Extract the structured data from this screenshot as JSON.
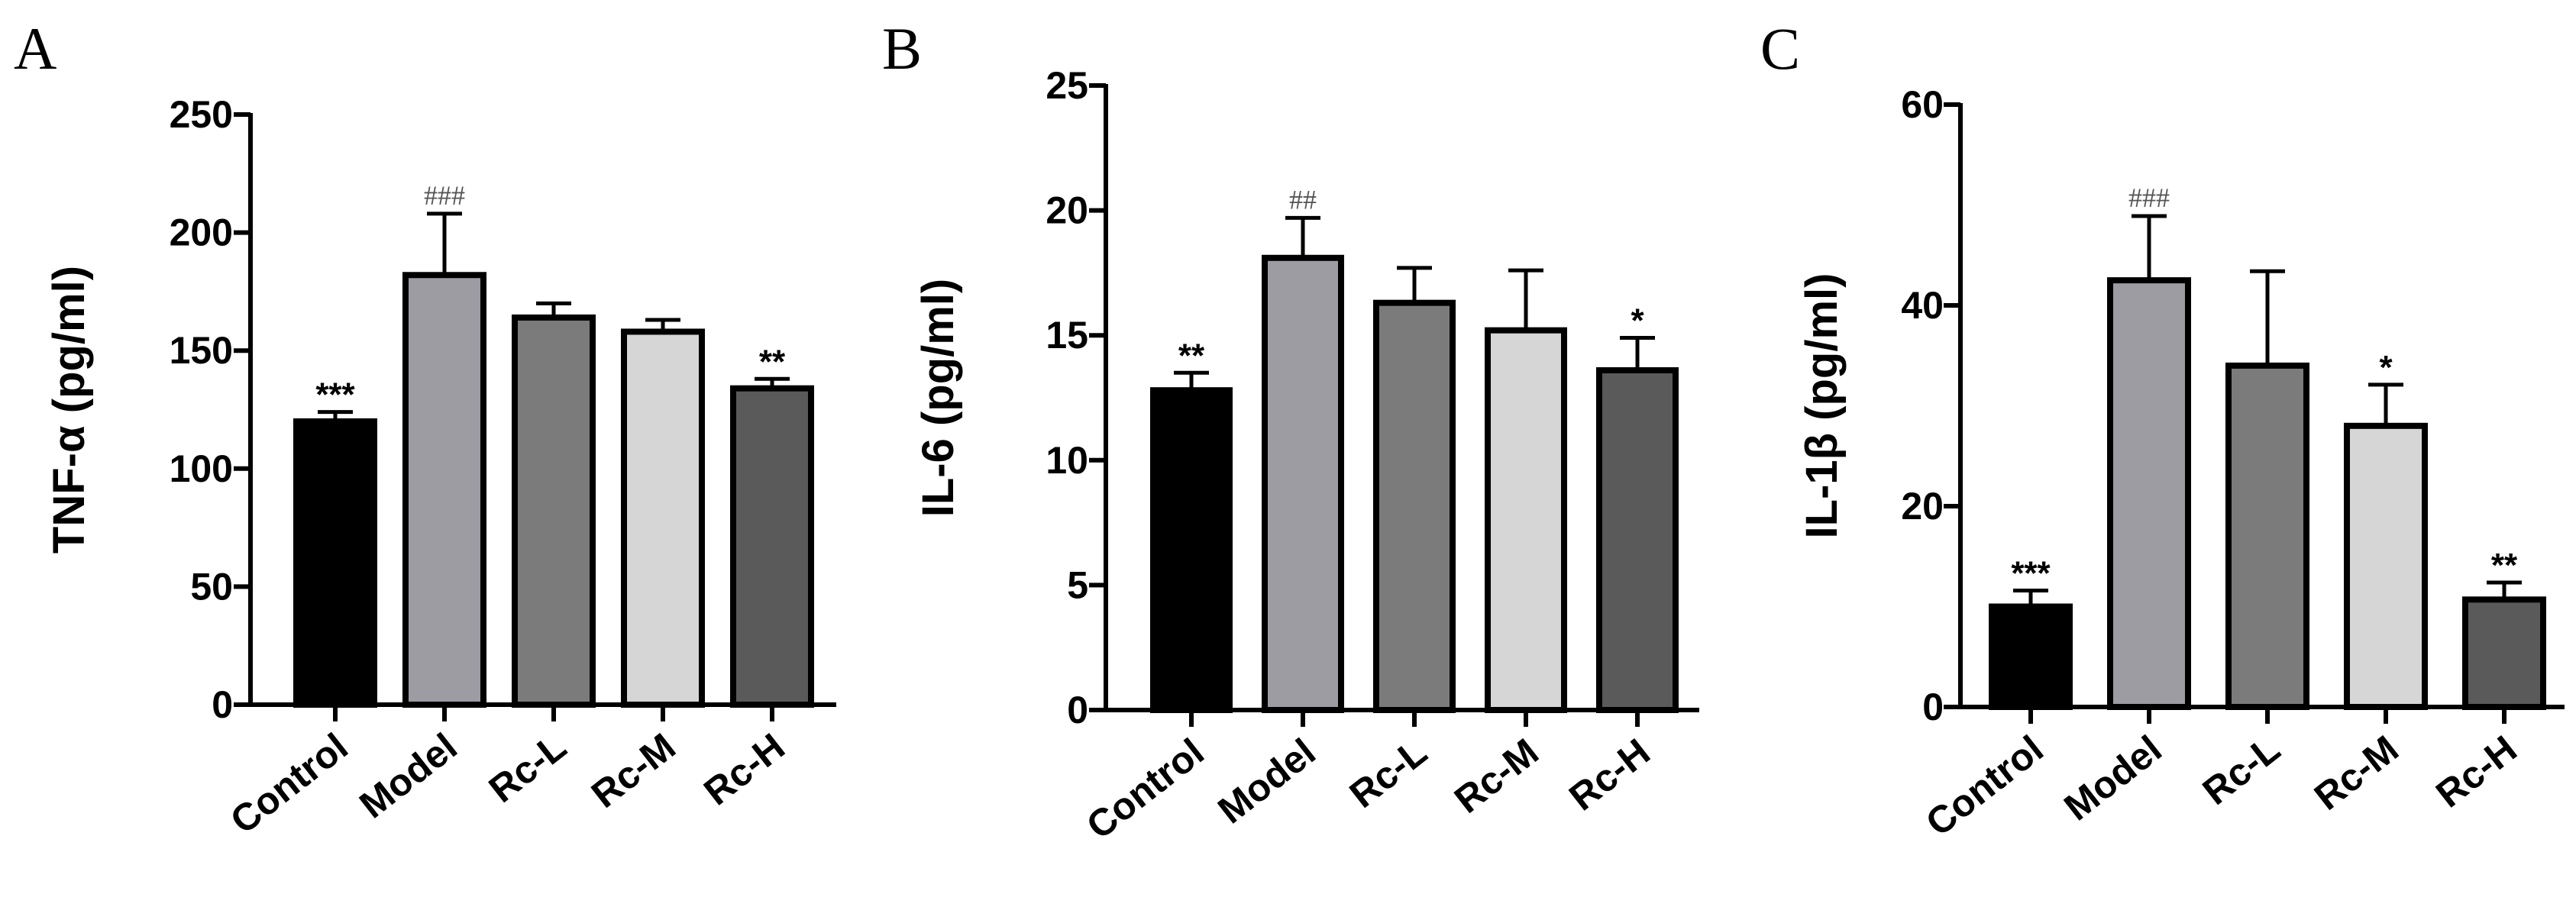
{
  "chart_data": [
    {
      "type": "bar",
      "panel": "A",
      "ylabel": "TNF-α (pg/ml)",
      "ylim": [
        0,
        250
      ],
      "yticks": [
        0,
        50,
        100,
        150,
        200,
        250
      ],
      "categories": [
        "Control",
        "Model",
        "Rc-L",
        "Rc-M",
        "Rc-H"
      ],
      "values": [
        120,
        182,
        164,
        158,
        134
      ],
      "errors": [
        4,
        26,
        6,
        5,
        4
      ],
      "colors": [
        "#000000",
        "#9d9ca3",
        "#7b7b7b",
        "#d6d6d6",
        "#5a5a5a"
      ],
      "annotations": [
        "***",
        "###",
        "",
        "",
        "**"
      ]
    },
    {
      "type": "bar",
      "panel": "B",
      "ylabel": "IL-6 (pg/ml)",
      "ylim": [
        0,
        25
      ],
      "yticks": [
        0,
        5,
        10,
        15,
        20,
        25
      ],
      "categories": [
        "Control",
        "Model",
        "Rc-L",
        "Rc-M",
        "Rc-H"
      ],
      "values": [
        12.8,
        18.1,
        16.3,
        15.2,
        13.6
      ],
      "errors": [
        0.7,
        1.6,
        1.4,
        2.4,
        1.3
      ],
      "colors": [
        "#000000",
        "#9d9ca3",
        "#7b7b7b",
        "#d6d6d6",
        "#5a5a5a"
      ],
      "annotations": [
        "**",
        "##",
        "",
        "",
        "*"
      ]
    },
    {
      "type": "bar",
      "panel": "C",
      "ylabel": "IL-1β (pg/ml)",
      "ylim": [
        0,
        60
      ],
      "yticks": [
        0,
        20,
        40,
        60
      ],
      "categories": [
        "Control",
        "Model",
        "Rc-L",
        "Rc-M",
        "Rc-H"
      ],
      "values": [
        10,
        42.5,
        34,
        28,
        10.7
      ],
      "errors": [
        1.6,
        6.4,
        9.4,
        4.1,
        1.7
      ],
      "colors": [
        "#000000",
        "#9d9ca3",
        "#7b7b7b",
        "#d6d6d6",
        "#5a5a5a"
      ],
      "annotations": [
        "***",
        "###",
        "",
        "*",
        "**"
      ]
    }
  ]
}
